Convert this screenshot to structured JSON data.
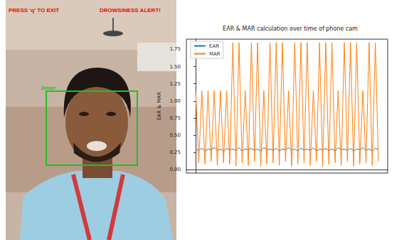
{
  "photo": {
    "overlay_left": "PRESS 'q' TO EXIT",
    "overlay_right": "DROWSINESS ALERT!",
    "box_label": "Driver"
  },
  "chart_data": {
    "type": "line",
    "title": "EAR & MAR calculation over time of phone cam",
    "y_label": "EAR & MAR",
    "x": [
      0,
      1,
      2,
      3,
      4,
      5,
      6,
      7,
      8,
      9,
      10,
      11,
      12,
      13,
      14,
      15,
      16,
      17,
      18,
      19,
      20,
      21,
      22,
      23,
      24,
      25,
      26,
      27,
      28,
      29,
      30,
      31,
      32,
      33,
      34,
      35,
      36,
      37,
      38,
      39,
      40,
      41,
      42,
      43,
      44,
      45,
      46,
      47,
      48,
      49,
      50,
      51,
      52,
      53,
      54,
      55,
      56,
      57,
      58,
      59
    ],
    "series": [
      {
        "name": "EAR",
        "color": "#1f77b4",
        "values": [
          0.3,
          0.28,
          0.31,
          0.27,
          0.3,
          0.29,
          0.32,
          0.28,
          0.3,
          0.27,
          0.31,
          0.29,
          0.3,
          0.28,
          0.32,
          0.27,
          0.3,
          0.29,
          0.31,
          0.28,
          0.3,
          0.27,
          0.32,
          0.29,
          0.3,
          0.28,
          0.31,
          0.27,
          0.3,
          0.29,
          0.32,
          0.28,
          0.3,
          0.27,
          0.31,
          0.29,
          0.3,
          0.28,
          0.32,
          0.27,
          0.3,
          0.29,
          0.31,
          0.28,
          0.3,
          0.27,
          0.32,
          0.29,
          0.3,
          0.28,
          0.31,
          0.27,
          0.3,
          0.29,
          0.32,
          0.28,
          0.3,
          0.27,
          0.31,
          0.29
        ]
      },
      {
        "name": "MAR",
        "color": "#ff7f0e",
        "values": [
          1.15,
          0.1,
          1.15,
          0.08,
          1.15,
          0.12,
          1.15,
          0.06,
          1.15,
          0.1,
          1.15,
          0.08,
          1.85,
          0.05,
          1.85,
          0.1,
          1.15,
          0.06,
          1.85,
          0.12,
          1.85,
          0.05,
          1.15,
          0.08,
          1.85,
          0.1,
          1.85,
          0.06,
          1.85,
          0.12,
          1.15,
          0.05,
          1.85,
          0.08,
          1.85,
          0.1,
          1.85,
          0.06,
          1.15,
          0.12,
          1.85,
          0.05,
          1.85,
          0.08,
          1.85,
          0.1,
          1.15,
          0.06,
          1.85,
          0.12,
          1.85,
          0.05,
          1.85,
          0.08,
          1.15,
          0.1,
          1.85,
          0.06,
          1.85,
          0.12
        ]
      }
    ],
    "xlim": [
      -3,
      62
    ],
    "ylim": [
      -0.05,
      1.9
    ],
    "yticks": [
      {
        "value": 0,
        "label": "0.00"
      },
      {
        "value": 0.25,
        "label": "0.25"
      },
      {
        "value": 0.5,
        "label": "0.50"
      },
      {
        "value": 0.75,
        "label": "0.75"
      },
      {
        "value": 1,
        "label": "1.00"
      },
      {
        "value": 1.25,
        "label": "1.25"
      },
      {
        "value": 1.5,
        "label": "1.50"
      },
      {
        "value": 1.75,
        "label": "1.75"
      }
    ],
    "legend": "upper left",
    "grid": false,
    "tick_labels": "y"
  }
}
